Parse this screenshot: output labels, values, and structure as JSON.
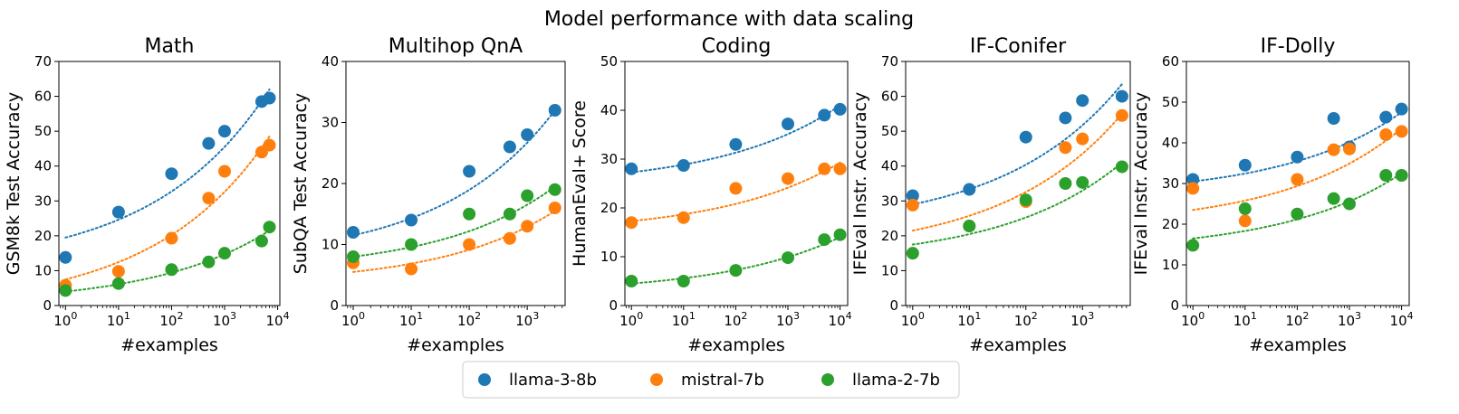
{
  "figure_title": "Model performance with data scaling",
  "legend": [
    {
      "name": "llama-3-8b",
      "color": "#1f77b4"
    },
    {
      "name": "mistral-7b",
      "color": "#ff7f0e"
    },
    {
      "name": "llama-2-7b",
      "color": "#2ca02c"
    }
  ],
  "chart_data": [
    {
      "type": "scatter",
      "title": "Math",
      "xlabel": "#examples",
      "ylabel": "GSM8k Test Accuracy",
      "xscale": "log",
      "xlim": [
        0.75,
        11000
      ],
      "ylim": [
        0,
        70
      ],
      "yticks": [
        0,
        10,
        20,
        30,
        40,
        50,
        60,
        70
      ],
      "xticks": [
        "10^0",
        "10^1",
        "10^2",
        "10^3",
        "10^4"
      ],
      "series": [
        {
          "name": "llama-3-8b",
          "x": [
            1,
            10,
            100,
            500,
            1000,
            5000,
            7000
          ],
          "values": [
            13.8,
            26.8,
            37.8,
            46.5,
            50.0,
            58.5,
            59.5
          ],
          "trend": [
            19.5,
            62.0
          ]
        },
        {
          "name": "mistral-7b",
          "x": [
            1,
            10,
            100,
            500,
            1000,
            5000,
            7000
          ],
          "values": [
            5.8,
            9.8,
            19.3,
            30.8,
            38.5,
            44.0,
            46.0
          ],
          "trend": [
            7.5,
            48.5
          ]
        },
        {
          "name": "llama-2-7b",
          "x": [
            1,
            10,
            100,
            500,
            1000,
            5000,
            7000
          ],
          "values": [
            4.3,
            6.3,
            10.3,
            12.5,
            15.0,
            18.5,
            22.5
          ],
          "trend": [
            4.0,
            21.5
          ]
        }
      ]
    },
    {
      "type": "scatter",
      "title": "Multihop QnA",
      "xlabel": "#examples",
      "ylabel": "SubQA Test Accuracy",
      "xscale": "log",
      "xlim": [
        0.75,
        4500
      ],
      "ylim": [
        0,
        40
      ],
      "yticks": [
        0,
        10,
        20,
        30,
        40
      ],
      "xticks": [
        "10^0",
        "10^1",
        "10^2",
        "10^3"
      ],
      "series": [
        {
          "name": "llama-3-8b",
          "x": [
            1,
            10,
            100,
            500,
            1000,
            3000
          ],
          "values": [
            12.0,
            14.0,
            22.0,
            26.0,
            28.0,
            32.0
          ],
          "trend": [
            11.5,
            32.0
          ]
        },
        {
          "name": "mistral-7b",
          "x": [
            1,
            10,
            100,
            500,
            1000,
            3000
          ],
          "values": [
            7.0,
            6.0,
            10.0,
            11.0,
            13.0,
            16.0
          ],
          "trend": [
            5.5,
            15.5
          ]
        },
        {
          "name": "llama-2-7b",
          "x": [
            1,
            10,
            100,
            500,
            1000,
            3000
          ],
          "values": [
            8.0,
            10.0,
            15.0,
            15.0,
            18.0,
            19.0
          ],
          "trend": [
            8.0,
            19.5
          ]
        }
      ]
    },
    {
      "type": "scatter",
      "title": "Coding",
      "xlabel": "#examples",
      "ylabel": "HumanEval+ Score",
      "xscale": "log",
      "xlim": [
        0.75,
        14000
      ],
      "ylim": [
        0,
        50
      ],
      "yticks": [
        0,
        10,
        20,
        30,
        40,
        50
      ],
      "xticks": [
        "10^0",
        "10^1",
        "10^2",
        "10^3",
        "10^4"
      ],
      "series": [
        {
          "name": "llama-3-8b",
          "x": [
            1,
            10,
            100,
            1000,
            5000,
            10000
          ],
          "values": [
            28.0,
            28.7,
            33.0,
            37.2,
            39.0,
            40.2
          ],
          "trend": [
            27.3,
            41.0
          ]
        },
        {
          "name": "mistral-7b",
          "x": [
            1,
            10,
            100,
            1000,
            5000,
            10000
          ],
          "values": [
            17.0,
            18.0,
            24.0,
            26.0,
            28.0,
            28.0
          ],
          "trend": [
            17.3,
            29.3
          ]
        },
        {
          "name": "llama-2-7b",
          "x": [
            1,
            10,
            100,
            1000,
            5000,
            10000
          ],
          "values": [
            5.0,
            5.0,
            7.2,
            9.8,
            13.5,
            14.5
          ],
          "trend": [
            4.5,
            14.0
          ]
        }
      ]
    },
    {
      "type": "scatter",
      "title": "IF-Conifer",
      "xlabel": "#examples",
      "ylabel": "IFEval Instr. Accuracy",
      "xscale": "log",
      "xlim": [
        0.75,
        7000
      ],
      "ylim": [
        0,
        70
      ],
      "yticks": [
        0,
        10,
        20,
        30,
        40,
        50,
        60,
        70
      ],
      "xticks": [
        "10^0",
        "10^1",
        "10^2",
        "10^3"
      ],
      "series": [
        {
          "name": "llama-3-8b",
          "x": [
            1,
            10,
            100,
            500,
            1000,
            5000
          ],
          "values": [
            31.5,
            33.3,
            48.3,
            53.8,
            58.8,
            60.0
          ],
          "trend": [
            29.0,
            63.5
          ]
        },
        {
          "name": "mistral-7b",
          "x": [
            1,
            10,
            100,
            500,
            1000,
            5000
          ],
          "values": [
            28.8,
            22.8,
            29.8,
            45.3,
            47.8,
            54.5
          ],
          "trend": [
            21.5,
            55.0
          ]
        },
        {
          "name": "llama-2-7b",
          "x": [
            1,
            10,
            100,
            500,
            1000,
            5000
          ],
          "values": [
            15.0,
            22.8,
            30.3,
            35.0,
            35.3,
            39.8
          ],
          "trend": [
            17.5,
            41.0
          ]
        }
      ]
    },
    {
      "type": "scatter",
      "title": "IF-Dolly",
      "xlabel": "#examples",
      "ylabel": "IFEval Instr. Accuracy",
      "xscale": "log",
      "xlim": [
        0.75,
        14000
      ],
      "ylim": [
        0,
        60
      ],
      "yticks": [
        0,
        10,
        20,
        30,
        40,
        50,
        60
      ],
      "xticks": [
        "10^0",
        "10^1",
        "10^2",
        "10^3",
        "10^4"
      ],
      "series": [
        {
          "name": "llama-3-8b",
          "x": [
            1,
            10,
            100,
            500,
            1000,
            5000,
            10000
          ],
          "values": [
            31.0,
            34.5,
            36.5,
            46.0,
            39.0,
            46.3,
            48.3
          ],
          "trend": [
            30.5,
            47.5
          ]
        },
        {
          "name": "mistral-7b",
          "x": [
            1,
            10,
            100,
            500,
            1000,
            5000,
            10000
          ],
          "values": [
            28.8,
            20.8,
            31.0,
            38.3,
            38.5,
            42.0,
            42.8
          ],
          "trend": [
            23.5,
            43.5
          ]
        },
        {
          "name": "llama-2-7b",
          "x": [
            1,
            10,
            100,
            500,
            1000,
            5000,
            10000
          ],
          "values": [
            14.8,
            23.8,
            22.5,
            26.3,
            25.0,
            32.0,
            32.0
          ],
          "trend": [
            16.5,
            32.5
          ]
        }
      ]
    }
  ]
}
